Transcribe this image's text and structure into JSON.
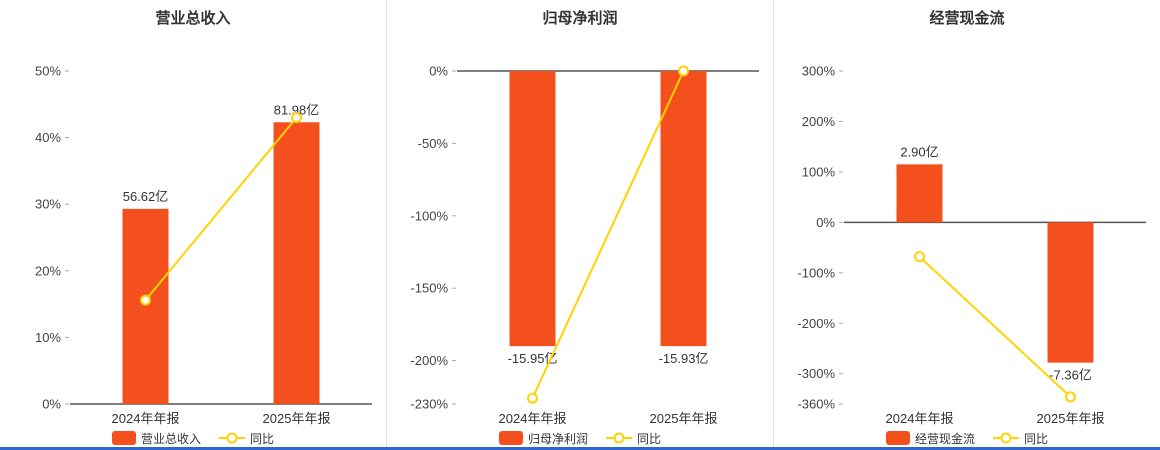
{
  "page": {
    "background": "#ffffff",
    "divider_color": "#e0e0e0",
    "bottom_bar_color": "#3366cc"
  },
  "colors": {
    "bar": "#f4501e",
    "line": "#ffd200",
    "axis": "#555555",
    "tick_text": "#444444",
    "label_text": "#333333"
  },
  "chart_data": [
    {
      "type": "bar",
      "title": "营业总收入",
      "categories": [
        "2024年年报",
        "2025年年报"
      ],
      "unit": "亿",
      "ylim": [
        0,
        50
      ],
      "y_ticks": [
        50,
        40,
        30,
        20,
        10,
        0
      ],
      "y_tick_suffix": "%",
      "grid": false,
      "legend_position": "bottom",
      "series": [
        {
          "name": "营业总收入",
          "type": "bar",
          "values": [
            56.62,
            81.98
          ],
          "labels": [
            "56.62亿",
            "81.98亿"
          ],
          "plotted_pct": [
            29.3,
            42.3
          ]
        },
        {
          "name": "同比",
          "type": "line",
          "values_pct": [
            15.6,
            43.0
          ]
        }
      ],
      "legend": [
        "营业总收入",
        "同比"
      ]
    },
    {
      "type": "bar",
      "title": "归母净利润",
      "categories": [
        "2024年年报",
        "2025年年报"
      ],
      "unit": "亿",
      "ylim": [
        -230,
        0
      ],
      "y_ticks": [
        0,
        -50,
        -100,
        -150,
        -200,
        -230
      ],
      "y_tick_suffix": "%",
      "grid": false,
      "legend_position": "bottom",
      "series": [
        {
          "name": "归母净利润",
          "type": "bar",
          "values": [
            -15.95,
            -15.93
          ],
          "labels": [
            "-15.95亿",
            "-15.93亿"
          ],
          "plotted_pct": [
            -190,
            -190
          ]
        },
        {
          "name": "同比",
          "type": "line",
          "values_pct": [
            -226,
            0
          ]
        }
      ],
      "legend": [
        "归母净利润",
        "同比"
      ]
    },
    {
      "type": "bar",
      "title": "经营现金流",
      "categories": [
        "2024年年报",
        "2025年年报"
      ],
      "unit": "亿",
      "ylim": [
        -360,
        300
      ],
      "y_ticks": [
        300,
        200,
        100,
        0,
        -100,
        -200,
        -300,
        -360
      ],
      "y_tick_suffix": "%",
      "grid": false,
      "legend_position": "bottom",
      "series": [
        {
          "name": "经营现金流",
          "type": "bar",
          "values": [
            2.9,
            -7.36
          ],
          "labels": [
            "2.90亿",
            "-7.36亿"
          ],
          "plotted_pct": [
            115,
            -278
          ]
        },
        {
          "name": "同比",
          "type": "line",
          "values_pct": [
            -68,
            -346
          ]
        }
      ],
      "legend": [
        "经营现金流",
        "同比"
      ]
    }
  ]
}
